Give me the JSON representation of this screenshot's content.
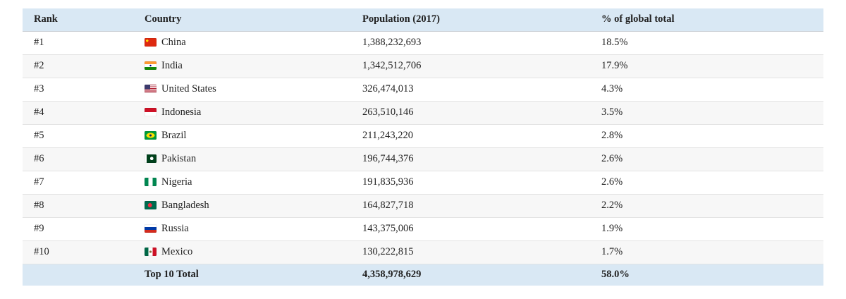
{
  "colors": {
    "header_bg": "#d9e8f4",
    "row_alt_bg": "#f7f7f7",
    "row_border": "#e3e3e3",
    "text": "#222222"
  },
  "chart_data": {
    "type": "table",
    "columns": [
      "Rank",
      "Country",
      "Population (2017)",
      "% of global total"
    ],
    "rows": [
      {
        "rank": "#1",
        "flag": "china",
        "country": "China",
        "population": "1,388,232,693",
        "population_value": 1388232693,
        "percent": "18.5%",
        "percent_value": 18.5
      },
      {
        "rank": "#2",
        "flag": "india",
        "country": "India",
        "population": "1,342,512,706",
        "population_value": 1342512706,
        "percent": "17.9%",
        "percent_value": 17.9
      },
      {
        "rank": "#3",
        "flag": "united-states",
        "country": "United States",
        "population": "326,474,013",
        "population_value": 326474013,
        "percent": "4.3%",
        "percent_value": 4.3
      },
      {
        "rank": "#4",
        "flag": "indonesia",
        "country": "Indonesia",
        "population": "263,510,146",
        "population_value": 263510146,
        "percent": "3.5%",
        "percent_value": 3.5
      },
      {
        "rank": "#5",
        "flag": "brazil",
        "country": "Brazil",
        "population": "211,243,220",
        "population_value": 211243220,
        "percent": "2.8%",
        "percent_value": 2.8
      },
      {
        "rank": "#6",
        "flag": "pakistan",
        "country": "Pakistan",
        "population": "196,744,376",
        "population_value": 196744376,
        "percent": "2.6%",
        "percent_value": 2.6
      },
      {
        "rank": "#7",
        "flag": "nigeria",
        "country": "Nigeria",
        "population": "191,835,936",
        "population_value": 191835936,
        "percent": "2.6%",
        "percent_value": 2.6
      },
      {
        "rank": "#8",
        "flag": "bangladesh",
        "country": "Bangladesh",
        "population": "164,827,718",
        "population_value": 164827718,
        "percent": "2.2%",
        "percent_value": 2.2
      },
      {
        "rank": "#9",
        "flag": "russia",
        "country": "Russia",
        "population": "143,375,006",
        "population_value": 143375006,
        "percent": "1.9%",
        "percent_value": 1.9
      },
      {
        "rank": "#10",
        "flag": "mexico",
        "country": "Mexico",
        "population": "130,222,815",
        "population_value": 130222815,
        "percent": "1.7%",
        "percent_value": 1.7
      }
    ],
    "footer": {
      "label": "Top 10 Total",
      "population": "4,358,978,629",
      "population_value": 4358978629,
      "percent": "58.0%",
      "percent_value": 58.0
    }
  }
}
